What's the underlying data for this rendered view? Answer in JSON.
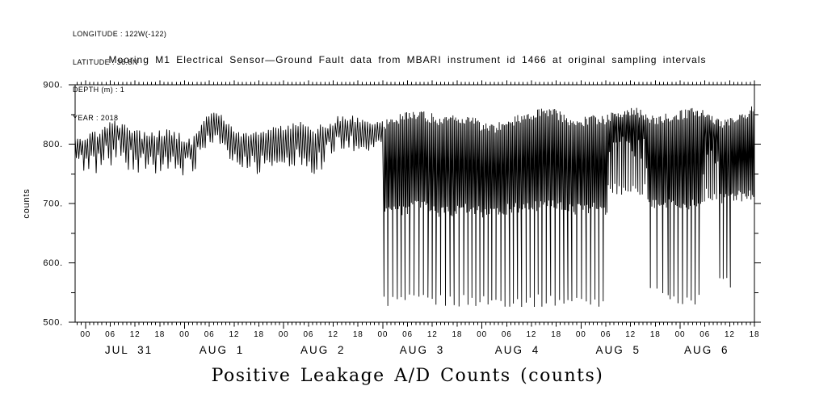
{
  "meta": {
    "lines": [
      "LONGITUDE : 122W(-122)",
      "LATITUDE : 36.8N",
      "DEPTH (m) : 1",
      "YEAR : 2018"
    ]
  },
  "chart_data": {
    "type": "line",
    "title": "Mooring M1 Electrical Sensor—Ground Fault data from MBARI instrument id 1466 at original sampling intervals",
    "xlabel": "Positive Leakage A/D Counts (counts)",
    "ylabel": "counts",
    "ylim": [
      500,
      900
    ],
    "grid": false,
    "legend": "none",
    "ytick_major": [
      [
        900,
        "900."
      ],
      [
        800,
        "800."
      ],
      [
        700,
        "700."
      ],
      [
        600,
        "600."
      ],
      [
        500,
        "500."
      ]
    ],
    "ytick_minor": [
      850,
      750,
      650,
      550
    ],
    "x_hours": {
      "min": -2.5,
      "max": 162,
      "zero_ref": "2018-07-31 00:00"
    },
    "hour_tick_minor_every_h": 1,
    "hour_tick_major_every_h": 6,
    "hour_labels": [
      [
        0,
        "00"
      ],
      [
        6,
        "06"
      ],
      [
        12,
        "12"
      ],
      [
        18,
        "18"
      ],
      [
        24,
        "00"
      ],
      [
        30,
        "06"
      ],
      [
        36,
        "12"
      ],
      [
        42,
        "18"
      ],
      [
        48,
        "00"
      ],
      [
        54,
        "06"
      ],
      [
        60,
        "12"
      ],
      [
        66,
        "18"
      ],
      [
        72,
        "00"
      ],
      [
        78,
        "06"
      ],
      [
        84,
        "12"
      ],
      [
        90,
        "18"
      ],
      [
        96,
        "00"
      ],
      [
        102,
        "06"
      ],
      [
        108,
        "12"
      ],
      [
        114,
        "18"
      ],
      [
        120,
        "00"
      ],
      [
        126,
        "06"
      ],
      [
        132,
        "12"
      ],
      [
        138,
        "18"
      ],
      [
        144,
        "00"
      ],
      [
        150,
        "06"
      ],
      [
        156,
        "12"
      ],
      [
        162,
        "18"
      ]
    ],
    "day_labels": [
      [
        "JUL 31",
        10.5
      ],
      [
        "AUG 1",
        33
      ],
      [
        "AUG 2",
        57.5
      ],
      [
        "AUG 3",
        81.5
      ],
      [
        "AUG 4",
        104.6
      ],
      [
        "AUG 5",
        129
      ],
      [
        "AUG 6",
        150.4
      ]
    ],
    "colors": {
      "line": "#000000",
      "axis": "#000000",
      "text": "#000000",
      "background": "#ffffff"
    },
    "series": [
      {
        "name": "positive_leakage_ad_counts",
        "color": "#000000"
      }
    ],
    "signal": {
      "note": "dense oscillating trace reconstructed from hi/lo envelope breakpoints [t_hours, hi_counts, lo_counts] plus deep spike trains [t_start_h, t_end_h, period_h, bottom_counts]",
      "step_hours": [
        [
          -2.5,
          0.3
        ],
        [
          72,
          0.16
        ]
      ],
      "envelope": [
        [
          -2.5,
          820,
          748
        ],
        [
          0,
          818,
          745
        ],
        [
          3,
          825,
          752
        ],
        [
          6,
          838,
          760
        ],
        [
          8,
          842,
          768
        ],
        [
          10,
          832,
          758
        ],
        [
          12,
          825,
          752
        ],
        [
          15,
          820,
          743
        ],
        [
          18,
          825,
          752
        ],
        [
          21,
          828,
          748
        ],
        [
          23.5,
          815,
          728
        ],
        [
          26,
          812,
          738
        ],
        [
          28,
          840,
          778
        ],
        [
          30,
          855,
          800
        ],
        [
          33,
          852,
          795
        ],
        [
          35,
          836,
          766
        ],
        [
          38,
          822,
          750
        ],
        [
          41,
          820,
          745
        ],
        [
          44,
          828,
          755
        ],
        [
          47,
          832,
          758
        ],
        [
          50,
          836,
          762
        ],
        [
          53,
          838,
          760
        ],
        [
          55,
          830,
          744
        ],
        [
          57,
          836,
          752
        ],
        [
          59,
          840,
          765
        ],
        [
          61,
          848,
          778
        ],
        [
          64,
          850,
          780
        ],
        [
          66,
          846,
          786
        ],
        [
          69,
          841,
          785
        ],
        [
          71.7,
          838,
          787
        ],
        [
          72,
          840,
          680
        ],
        [
          75,
          848,
          678
        ],
        [
          78,
          856,
          680
        ],
        [
          81,
          858,
          688
        ],
        [
          84,
          852,
          680
        ],
        [
          87,
          846,
          675
        ],
        [
          90,
          854,
          680
        ],
        [
          93,
          850,
          678
        ],
        [
          96,
          838,
          675
        ],
        [
          99,
          834,
          675
        ],
        [
          102,
          842,
          680
        ],
        [
          105,
          850,
          684
        ],
        [
          108,
          856,
          682
        ],
        [
          111,
          864,
          690
        ],
        [
          114,
          860,
          686
        ],
        [
          117,
          848,
          680
        ],
        [
          120,
          846,
          680
        ],
        [
          123,
          850,
          682
        ],
        [
          126.3,
          850,
          680
        ],
        [
          126.7,
          852,
          768
        ],
        [
          128,
          856,
          770
        ],
        [
          131,
          860,
          772
        ],
        [
          134,
          862,
          768
        ],
        [
          135.8,
          856,
          762
        ],
        [
          136.3,
          848,
          690
        ],
        [
          139,
          850,
          688
        ],
        [
          141.3,
          852,
          690
        ],
        [
          143,
          856,
          688
        ],
        [
          146,
          860,
          690
        ],
        [
          149.3,
          864,
          692
        ],
        [
          149.8,
          855,
          768
        ],
        [
          153.2,
          845,
          764
        ],
        [
          153.6,
          840,
          700
        ],
        [
          156,
          845,
          700
        ],
        [
          158,
          852,
          705
        ],
        [
          160,
          858,
          700
        ],
        [
          162,
          868,
          710
        ]
      ],
      "deep_spike_trains": [
        [
          72.3,
          126.3,
          1.05,
          536
        ],
        [
          126.6,
          135.6,
          0.55,
          724
        ],
        [
          136.8,
          141.4,
          1.5,
          548
        ],
        [
          141.6,
          149.4,
          1.0,
          538
        ],
        [
          149.9,
          153.3,
          0.5,
          714
        ],
        [
          153.6,
          156.4,
          0.85,
          566
        ]
      ]
    }
  }
}
